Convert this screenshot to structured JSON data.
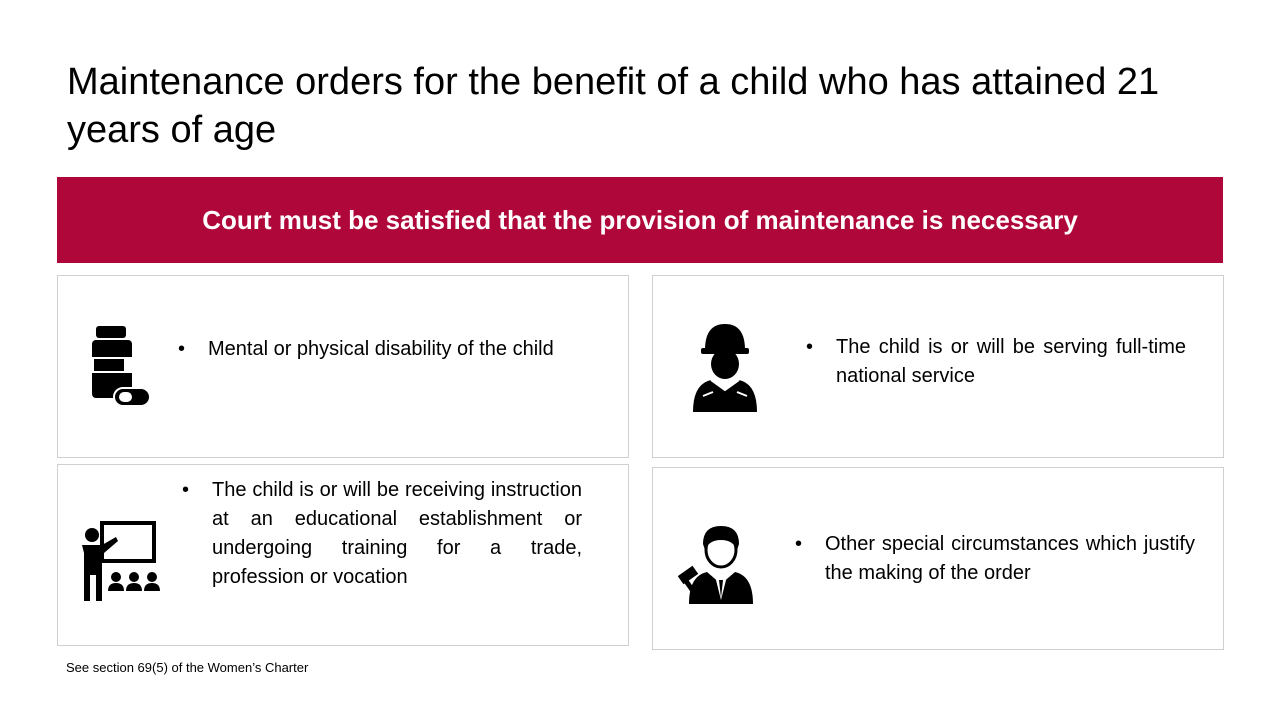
{
  "slide": {
    "title": "Maintenance orders for the benefit of a child who has attained 21 years of age",
    "banner": "Court must be satisfied that the provision of maintenance is necessary",
    "cards": [
      {
        "icon": "medicine-bottle-pill-icon",
        "bullet": "•",
        "text": "Mental or physical disability of the child"
      },
      {
        "icon": "soldier-icon",
        "bullet": "•",
        "text": "The child is or will be serving full-time national service"
      },
      {
        "icon": "teacher-classroom-icon",
        "bullet": "•",
        "text": "The child is or will be receiving instruction at an educational establishment or undergoing training for a trade, profession or vocation"
      },
      {
        "icon": "judge-gavel-icon",
        "bullet": "•",
        "text": "Other special circumstances which justify the making of the order"
      }
    ],
    "footnote": "See section 69(5) of the Women’s Charter"
  },
  "colors": {
    "accent": "#b0073a",
    "card_border": "#d0d0d0"
  }
}
